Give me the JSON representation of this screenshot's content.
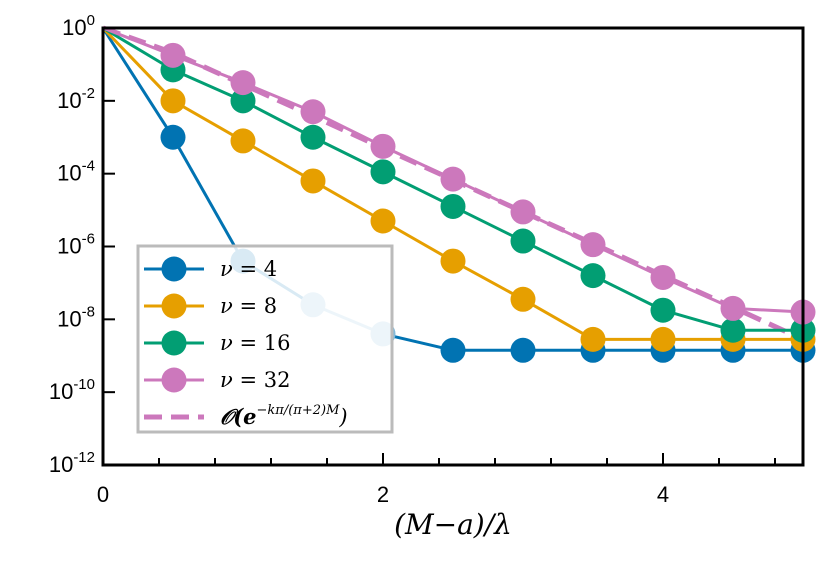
{
  "chart_data": {
    "type": "line",
    "xlabel": "(M−a)/λ",
    "ylabel": "",
    "xlim": [
      0,
      5
    ],
    "ylim_log10": [
      -12,
      0
    ],
    "x_ticks": [
      {
        "value": 0,
        "label": "0"
      },
      {
        "value": 2,
        "label": "2"
      },
      {
        "value": 4,
        "label": "4"
      }
    ],
    "y_ticks": [
      {
        "exp": 0,
        "base": "10",
        "sup": "0"
      },
      {
        "exp": -2,
        "base": "10",
        "sup": "-2"
      },
      {
        "exp": -4,
        "base": "10",
        "sup": "-4"
      },
      {
        "exp": -6,
        "base": "10",
        "sup": "-6"
      },
      {
        "exp": -8,
        "base": "10",
        "sup": "-8"
      },
      {
        "exp": -10,
        "base": "10",
        "sup": "-10"
      },
      {
        "exp": -12,
        "base": "10",
        "sup": "-12"
      }
    ],
    "x": [
      0,
      0.5,
      1,
      1.5,
      2,
      2.5,
      3,
      3.5,
      4,
      4.5,
      5
    ],
    "series": [
      {
        "name": "nu4",
        "label_sym": "ν",
        "label_val": "4",
        "color": "#0173b2",
        "log10_values": [
          0,
          -3.0,
          -6.4,
          -7.6,
          -8.4,
          -8.85,
          -8.85,
          -8.85,
          -8.85,
          -8.85,
          -8.85
        ]
      },
      {
        "name": "nu8",
        "label_sym": "ν",
        "label_val": "8",
        "color": "#e69f00",
        "log10_values": [
          0,
          -2.0,
          -3.1,
          -4.2,
          -5.3,
          -6.4,
          -7.45,
          -8.55,
          -8.55,
          -8.55,
          -8.55
        ]
      },
      {
        "name": "nu16",
        "label_sym": "ν",
        "label_val": "16",
        "color": "#029e73",
        "log10_values": [
          0,
          -1.15,
          -2.0,
          -3.0,
          -3.95,
          -4.9,
          -5.85,
          -6.8,
          -7.75,
          -8.3,
          -8.3
        ]
      },
      {
        "name": "nu32",
        "label_sym": "ν",
        "label_val": "32",
        "color": "#cc78bc",
        "log10_values": [
          0,
          -0.75,
          -1.5,
          -2.3,
          -3.25,
          -4.15,
          -5.05,
          -5.95,
          -6.85,
          -7.7,
          -7.8
        ]
      }
    ],
    "reference": {
      "name": "reference",
      "color": "#cc78bc",
      "label_main": "𝒪(e",
      "label_sup": "−kπ/(π+2)M",
      "label_end": ")",
      "log10_values": [
        0,
        -0.68,
        -1.55,
        -2.42,
        -3.3,
        -4.17,
        -5.05,
        -5.92,
        -6.8,
        -7.67,
        -8.55
      ]
    },
    "faded_markers": [
      {
        "series": 0,
        "index": 3,
        "color": "#84bad9"
      },
      {
        "series": 0,
        "index": 4,
        "color": "#84bad9"
      }
    ],
    "legend_placement": "lower-left"
  }
}
